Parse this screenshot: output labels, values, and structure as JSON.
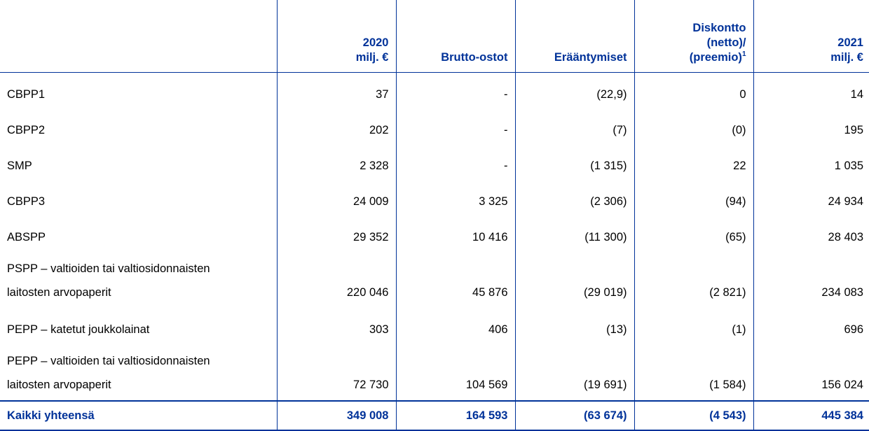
{
  "table": {
    "columns": [
      [
        "2020",
        "milj. €"
      ],
      [
        "Brutto-ostot"
      ],
      [
        "Erääntymiset"
      ],
      [
        "Diskontto",
        "(netto)/",
        "(preemio)"
      ],
      [
        "2021",
        "milj. €"
      ]
    ],
    "footnote_marker": "1",
    "rows": [
      [
        [
          "CBPP1"
        ],
        "37",
        "-",
        "(22,9)",
        "0",
        "14"
      ],
      [
        [
          "CBPP2"
        ],
        "202",
        "-",
        "(7)",
        "(0)",
        "195"
      ],
      [
        [
          "SMP"
        ],
        "2 328",
        "-",
        "(1 315)",
        "22",
        "1 035"
      ],
      [
        [
          "CBPP3"
        ],
        "24 009",
        "3 325",
        "(2 306)",
        "(94)",
        "24 934"
      ],
      [
        [
          "ABSPP"
        ],
        "29 352",
        "10 416",
        "(11 300)",
        "(65)",
        "28 403"
      ],
      [
        [
          "PSPP – valtioiden tai valtiosidonnaisten",
          "laitosten arvopaperit"
        ],
        "220 046",
        "45 876",
        "(29 019)",
        "(2 821)",
        "234 083"
      ],
      [
        [
          "PEPP – katetut joukkolainat"
        ],
        "303",
        "406",
        "(13)",
        "(1)",
        "696"
      ],
      [
        [
          "PEPP – valtioiden tai valtiosidonnaisten",
          "laitosten arvopaperit"
        ],
        "72 730",
        "104 569",
        "(19 691)",
        "(1 584)",
        "156 024"
      ]
    ],
    "total": [
      "Kaikki yhteensä",
      "349 008",
      "164 593",
      "(63 674)",
      "(4 543)",
      "445 384"
    ]
  }
}
